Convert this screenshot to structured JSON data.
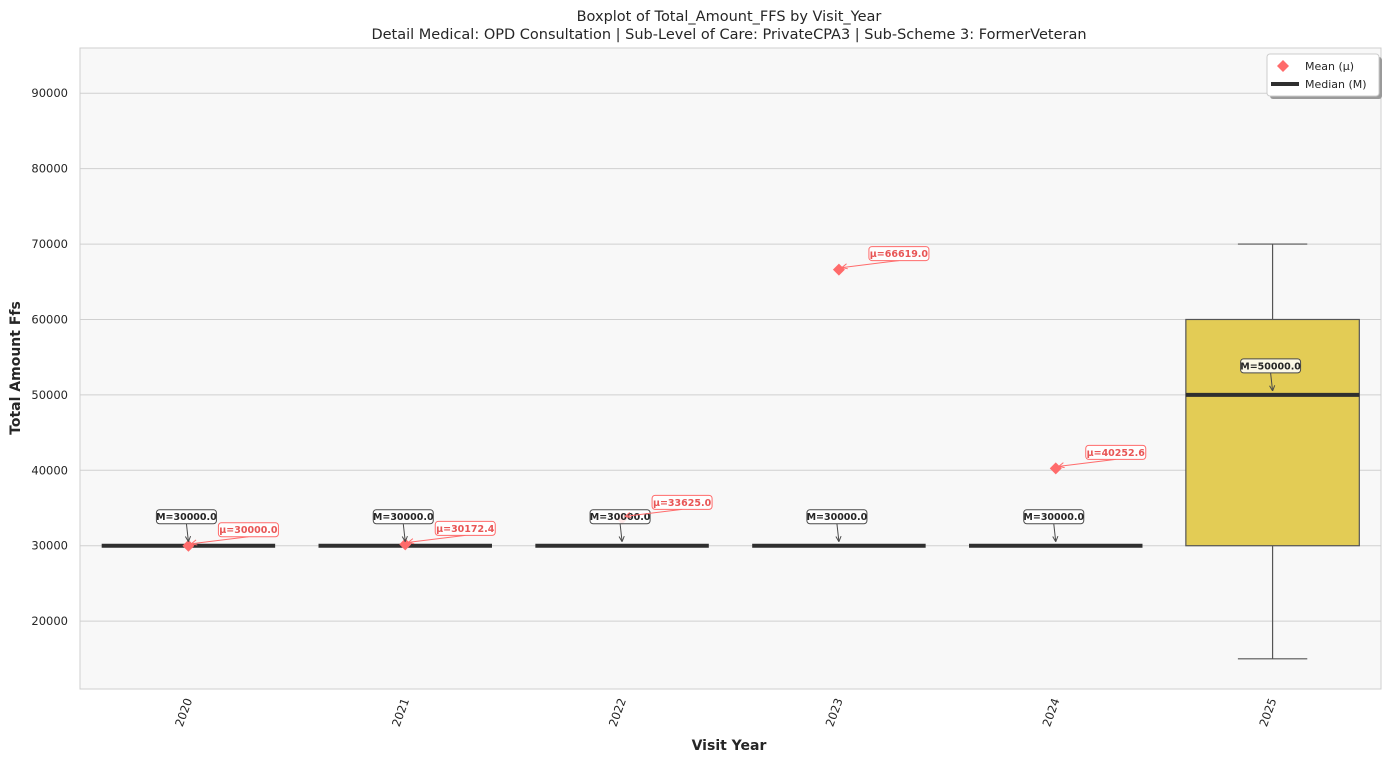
{
  "chart_data": {
    "type": "box",
    "title": "Boxplot of Total_Amount_FFS by Visit_Year",
    "subtitle": "Detail Medical: OPD Consultation | Sub-Level of Care: PrivateCPA3 | Sub-Scheme 3: FormerVeteran",
    "xlabel": "Visit Year",
    "ylabel": "Total Amount Ffs",
    "ylim": [
      11000,
      96000
    ],
    "yticks": [
      20000,
      30000,
      40000,
      50000,
      60000,
      70000,
      80000,
      90000
    ],
    "grid": true,
    "legend_placement": "top-right",
    "legend": [
      {
        "label": "Mean (μ)",
        "marker": "diamond"
      },
      {
        "label": "Median (M)",
        "marker": "line"
      }
    ],
    "categories": [
      "2020",
      "2021",
      "2022",
      "2023",
      "2024",
      "2025"
    ],
    "boxes": [
      {
        "category": "2020",
        "whislo": 30000,
        "q1": 30000,
        "median": 30000,
        "q3": 30000,
        "whishi": 30000,
        "mean": 30000.0,
        "median_label": "M=30000.0",
        "mean_label": "μ=30000.0"
      },
      {
        "category": "2021",
        "whislo": 30000,
        "q1": 30000,
        "median": 30000,
        "q3": 30000,
        "whishi": 30000,
        "mean": 30172.4,
        "median_label": "M=30000.0",
        "mean_label": "μ=30172.4"
      },
      {
        "category": "2022",
        "whislo": 30000,
        "q1": 30000,
        "median": 30000,
        "q3": 30000,
        "whishi": 30000,
        "mean": 33625.0,
        "median_label": "M=30000.0",
        "mean_label": "μ=33625.0"
      },
      {
        "category": "2023",
        "whislo": 30000,
        "q1": 30000,
        "median": 30000,
        "q3": 30000,
        "whishi": 30000,
        "mean": 66619.0,
        "median_label": "M=30000.0",
        "mean_label": "μ=66619.0"
      },
      {
        "category": "2024",
        "whislo": 30000,
        "q1": 30000,
        "median": 30000,
        "q3": 30000,
        "whishi": 30000,
        "mean": 40252.6,
        "median_label": "M=30000.0",
        "mean_label": "μ=40252.6"
      },
      {
        "category": "2025",
        "whislo": 15000,
        "q1": 30000,
        "median": 50000,
        "q3": 60000,
        "whishi": 70000,
        "mean": null,
        "median_label": "M=50000.0",
        "mean_label": ""
      }
    ],
    "colors": {
      "box_fill": "#e3cc55",
      "box_edge": "#555555",
      "median": "#2f2f2f",
      "mean": "#ff6b6b",
      "plot_bg": "#f8f8f8",
      "grid": "#d0d0d0"
    }
  }
}
